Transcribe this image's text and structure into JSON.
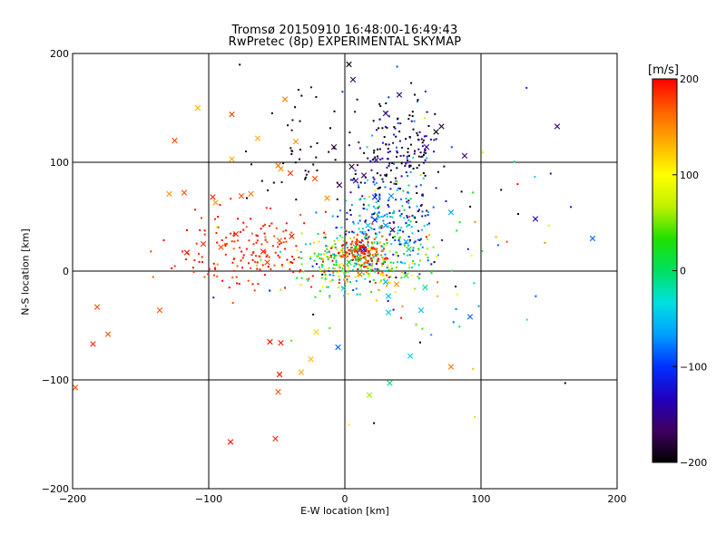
{
  "chart_data": {
    "type": "scatter",
    "title": "Tromsø 20150910 16:48:00-16:49:43",
    "subtitle": "RwPretec (8p) EXPERIMENTAL SKYMAP",
    "xlabel": "E-W location [km]",
    "ylabel": "N-S location [km]",
    "xlim": [
      -200,
      200
    ],
    "ylim": [
      -200,
      200
    ],
    "xticks": [
      -200,
      -100,
      0,
      100,
      200
    ],
    "yticks": [
      -200,
      -100,
      0,
      100,
      200
    ],
    "grid": true,
    "colorbar": {
      "label": "[m/s]",
      "range": [
        -200,
        200
      ],
      "ticks": [
        200,
        100,
        0,
        -100,
        -200
      ],
      "colormap": [
        "#000000",
        "#400060",
        "#2000c0",
        "#0030ff",
        "#00a0ff",
        "#00e0e0",
        "#00e060",
        "#20e000",
        "#c0f000",
        "#ffff00",
        "#ffb000",
        "#ff6000",
        "#ff0000"
      ]
    },
    "series": [
      {
        "marker": "x",
        "points": [
          [
            -108,
            150
          ],
          [
            -83,
            144
          ],
          [
            -125,
            120
          ],
          [
            -83,
            103
          ],
          [
            -64,
            122
          ],
          [
            -36,
            119
          ],
          [
            -49,
            97
          ],
          [
            -47,
            94
          ],
          [
            -40,
            90
          ],
          [
            -44,
            158
          ],
          [
            -129,
            71
          ],
          [
            -118,
            72
          ],
          [
            -97,
            68
          ],
          [
            -95,
            63
          ],
          [
            -76,
            69
          ],
          [
            -69,
            71
          ],
          [
            -116,
            17
          ],
          [
            -104,
            25
          ],
          [
            -91,
            22
          ],
          [
            -80,
            34
          ],
          [
            -48,
            28
          ],
          [
            -39,
            32
          ],
          [
            -60,
            18
          ],
          [
            -57,
            8
          ],
          [
            -182,
            -33
          ],
          [
            -136,
            -36
          ],
          [
            -174,
            -58
          ],
          [
            -185,
            -67
          ],
          [
            -198,
            -107
          ],
          [
            -55,
            -65
          ],
          [
            -47,
            -66
          ],
          [
            -21,
            -56
          ],
          [
            -25,
            -81
          ],
          [
            -32,
            -93
          ],
          [
            -48,
            -95
          ],
          [
            -49,
            -111
          ],
          [
            -84,
            -157
          ],
          [
            -51,
            -154
          ],
          [
            -5,
            -70
          ],
          [
            18,
            -114
          ],
          [
            33,
            -103
          ],
          [
            48,
            -78
          ],
          [
            78,
            -88
          ],
          [
            92,
            -42
          ],
          [
            56,
            -36
          ],
          [
            47,
            20
          ],
          [
            45,
            27
          ],
          [
            35,
            38
          ],
          [
            30,
            42
          ],
          [
            22,
            68
          ],
          [
            34,
            69
          ],
          [
            30,
            145
          ],
          [
            40,
            162
          ],
          [
            23,
            102
          ],
          [
            88,
            106
          ],
          [
            78,
            54
          ],
          [
            60,
            114
          ],
          [
            67,
            128
          ],
          [
            71,
            133
          ],
          [
            156,
            133
          ],
          [
            140,
            48
          ],
          [
            182,
            30
          ],
          [
            3,
            190
          ],
          [
            5,
            96
          ],
          [
            6,
            176
          ],
          [
            -8,
            114
          ],
          [
            -22,
            85
          ],
          [
            -13,
            67
          ],
          [
            -4,
            79
          ],
          [
            8,
            83
          ],
          [
            14,
            88
          ],
          [
            22,
            47
          ],
          [
            17,
            42
          ],
          [
            10,
            12
          ],
          [
            8,
            22
          ],
          [
            14,
            20
          ],
          [
            3,
            8
          ],
          [
            11,
            -3
          ],
          [
            -1,
            -16
          ],
          [
            30,
            -10
          ],
          [
            32,
            -23
          ],
          [
            32,
            -38
          ],
          [
            38,
            -12
          ],
          [
            45,
            -4
          ],
          [
            59,
            -15
          ]
        ]
      },
      {
        "marker": "dot",
        "clusters": [
          {
            "cx": 40,
            "cy": 110,
            "sx": 16,
            "sy": 22,
            "n": 170,
            "v": -170,
            "vs": 50
          },
          {
            "cx": 32,
            "cy": 45,
            "sx": 18,
            "sy": 22,
            "n": 230,
            "v": -80,
            "vs": 60
          },
          {
            "cx": 10,
            "cy": 10,
            "sx": 22,
            "sy": 14,
            "n": 340,
            "v": 40,
            "vs": 80
          },
          {
            "cx": 12,
            "cy": 18,
            "sx": 8,
            "sy": 7,
            "n": 150,
            "v": 180,
            "vs": 20
          },
          {
            "cx": -72,
            "cy": 20,
            "sx": 30,
            "sy": 18,
            "n": 160,
            "v": 190,
            "vs": 12
          },
          {
            "cx": -30,
            "cy": 110,
            "sx": 20,
            "sy": 25,
            "n": 45,
            "v": -195,
            "vs": 10
          },
          {
            "cx": 45,
            "cy": 5,
            "sx": 60,
            "sy": 60,
            "n": 90,
            "v": 0,
            "vs": 150
          }
        ]
      }
    ]
  }
}
